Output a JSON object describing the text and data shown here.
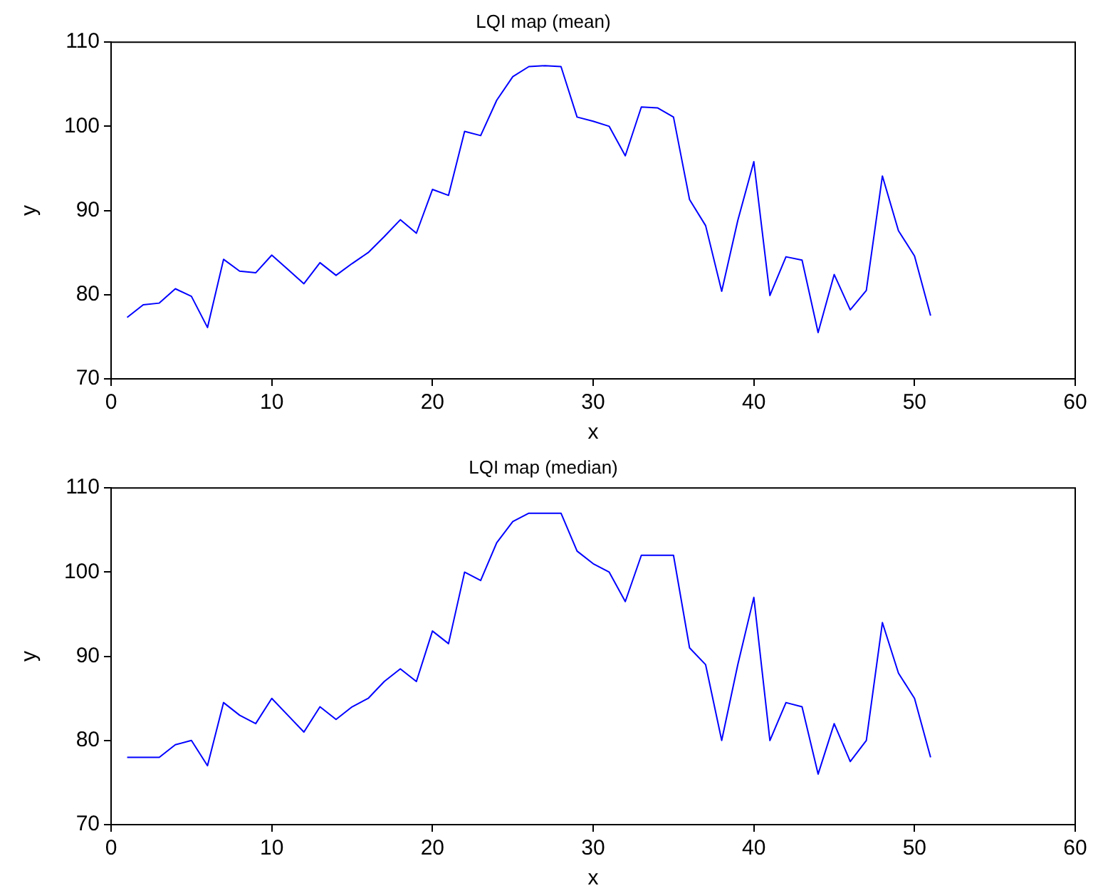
{
  "chart_data": [
    {
      "type": "line",
      "title": "LQI map (mean)",
      "xlabel": "x",
      "ylabel": "y",
      "x": [
        1,
        2,
        3,
        4,
        5,
        6,
        7,
        8,
        9,
        10,
        11,
        12,
        13,
        14,
        15,
        16,
        17,
        18,
        19,
        20,
        21,
        22,
        23,
        24,
        25,
        26,
        27,
        28,
        29,
        30,
        31,
        32,
        33,
        34,
        35,
        36,
        37,
        38,
        39,
        40,
        41,
        42,
        43,
        44,
        45,
        46,
        47,
        48,
        49,
        50,
        51
      ],
      "series": [
        {
          "color": "#0000ff",
          "values": [
            77.3,
            78.8,
            79,
            80.7,
            79.8,
            76.1,
            84.2,
            82.8,
            82.6,
            84.7,
            83,
            81.3,
            83.8,
            82.3,
            83.7,
            85,
            86.9,
            88.9,
            87.3,
            92.5,
            91.8,
            99.4,
            98.9,
            103.1,
            105.9,
            107.1,
            107.2,
            107.1,
            101.1,
            100.6,
            100,
            96.5,
            102.3,
            102.2,
            101.1,
            91.3,
            88.2,
            80.4,
            88.8,
            95.8,
            79.9,
            84.5,
            84.1,
            75.5,
            82.4,
            78.2,
            80.5,
            94.1,
            87.6,
            84.6,
            77.5
          ]
        }
      ],
      "xlim": [
        0,
        60
      ],
      "xticks": [
        0,
        10,
        20,
        30,
        40,
        50,
        60
      ],
      "ylim": [
        70,
        110
      ],
      "yticks": [
        70,
        80,
        90,
        100,
        110
      ],
      "grid": false,
      "legend": false,
      "marker": "none",
      "line_style": "solid"
    },
    {
      "type": "line",
      "title": "LQI map (median)",
      "xlabel": "x",
      "ylabel": "y",
      "x": [
        1,
        2,
        3,
        4,
        5,
        6,
        7,
        8,
        9,
        10,
        11,
        12,
        13,
        14,
        15,
        16,
        17,
        18,
        19,
        20,
        21,
        22,
        23,
        24,
        25,
        26,
        27,
        28,
        29,
        30,
        31,
        32,
        33,
        34,
        35,
        36,
        37,
        38,
        39,
        40,
        41,
        42,
        43,
        44,
        45,
        46,
        47,
        48,
        49,
        50,
        51
      ],
      "series": [
        {
          "color": "#0000ff",
          "values": [
            78,
            78,
            78,
            79.5,
            80,
            77,
            84.5,
            83,
            82,
            85,
            83,
            81,
            84,
            82.5,
            84,
            85,
            87,
            88.5,
            87,
            93,
            91.5,
            100,
            99,
            103.5,
            106,
            107,
            107,
            107,
            102.5,
            101,
            100,
            96.5,
            102,
            102,
            102,
            91,
            89,
            80,
            89,
            97,
            80,
            84.5,
            84,
            76,
            82,
            77.5,
            80,
            94,
            88,
            85,
            78
          ]
        }
      ],
      "xlim": [
        0,
        60
      ],
      "xticks": [
        0,
        10,
        20,
        30,
        40,
        50,
        60
      ],
      "ylim": [
        70,
        110
      ],
      "yticks": [
        70,
        80,
        90,
        100,
        110
      ],
      "grid": false,
      "legend": false,
      "marker": "none",
      "line_style": "solid"
    }
  ]
}
